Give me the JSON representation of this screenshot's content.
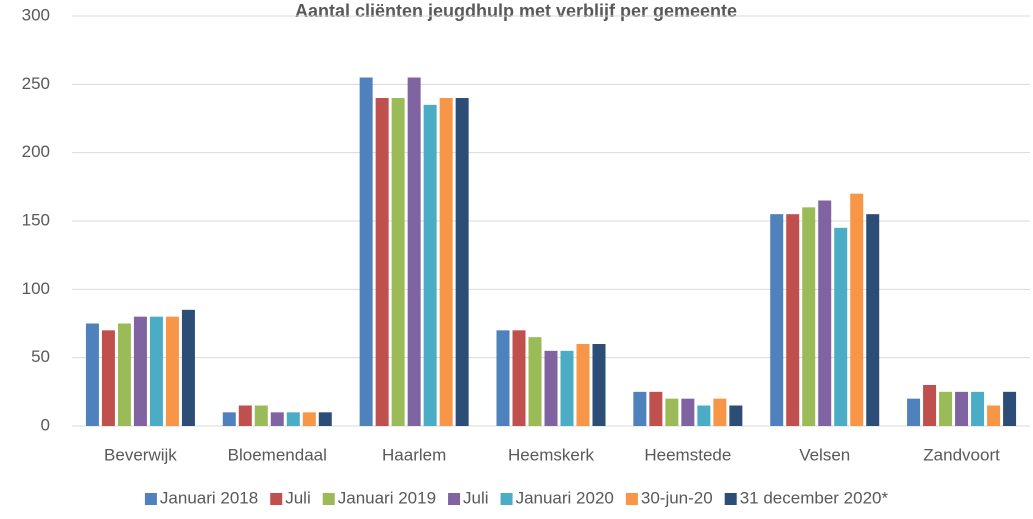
{
  "chart_data": {
    "type": "bar",
    "title": "Aantal cliënten jeugdhulp met verblijf per gemeente",
    "categories": [
      "Beverwijk",
      "Bloemendaal",
      "Haarlem",
      "Heemskerk",
      "Heemstede",
      "Velsen",
      "Zandvoort"
    ],
    "series": [
      {
        "name": "Januari 2018",
        "color": "#4f81bd",
        "values": [
          75,
          10,
          255,
          70,
          25,
          155,
          20
        ]
      },
      {
        "name": "Juli",
        "color": "#c0504d",
        "values": [
          70,
          15,
          240,
          70,
          25,
          155,
          30
        ]
      },
      {
        "name": "Januari 2019",
        "color": "#9bbb59",
        "values": [
          75,
          15,
          240,
          65,
          20,
          160,
          25
        ]
      },
      {
        "name": "Juli",
        "color": "#8064a2",
        "values": [
          80,
          10,
          255,
          55,
          20,
          165,
          25
        ]
      },
      {
        "name": "Januari 2020",
        "color": "#4bacc6",
        "values": [
          80,
          10,
          235,
          55,
          15,
          145,
          25
        ]
      },
      {
        "name": "30-jun-20",
        "color": "#f79646",
        "values": [
          80,
          10,
          240,
          60,
          20,
          170,
          15
        ]
      },
      {
        "name": "31 december 2020*",
        "color": "#2c4d75",
        "values": [
          85,
          10,
          240,
          60,
          15,
          155,
          25
        ]
      }
    ],
    "ylim": [
      0,
      300
    ],
    "yticks": [
      0,
      50,
      100,
      150,
      200,
      250,
      300
    ],
    "grid": true,
    "legend": "bottom"
  }
}
